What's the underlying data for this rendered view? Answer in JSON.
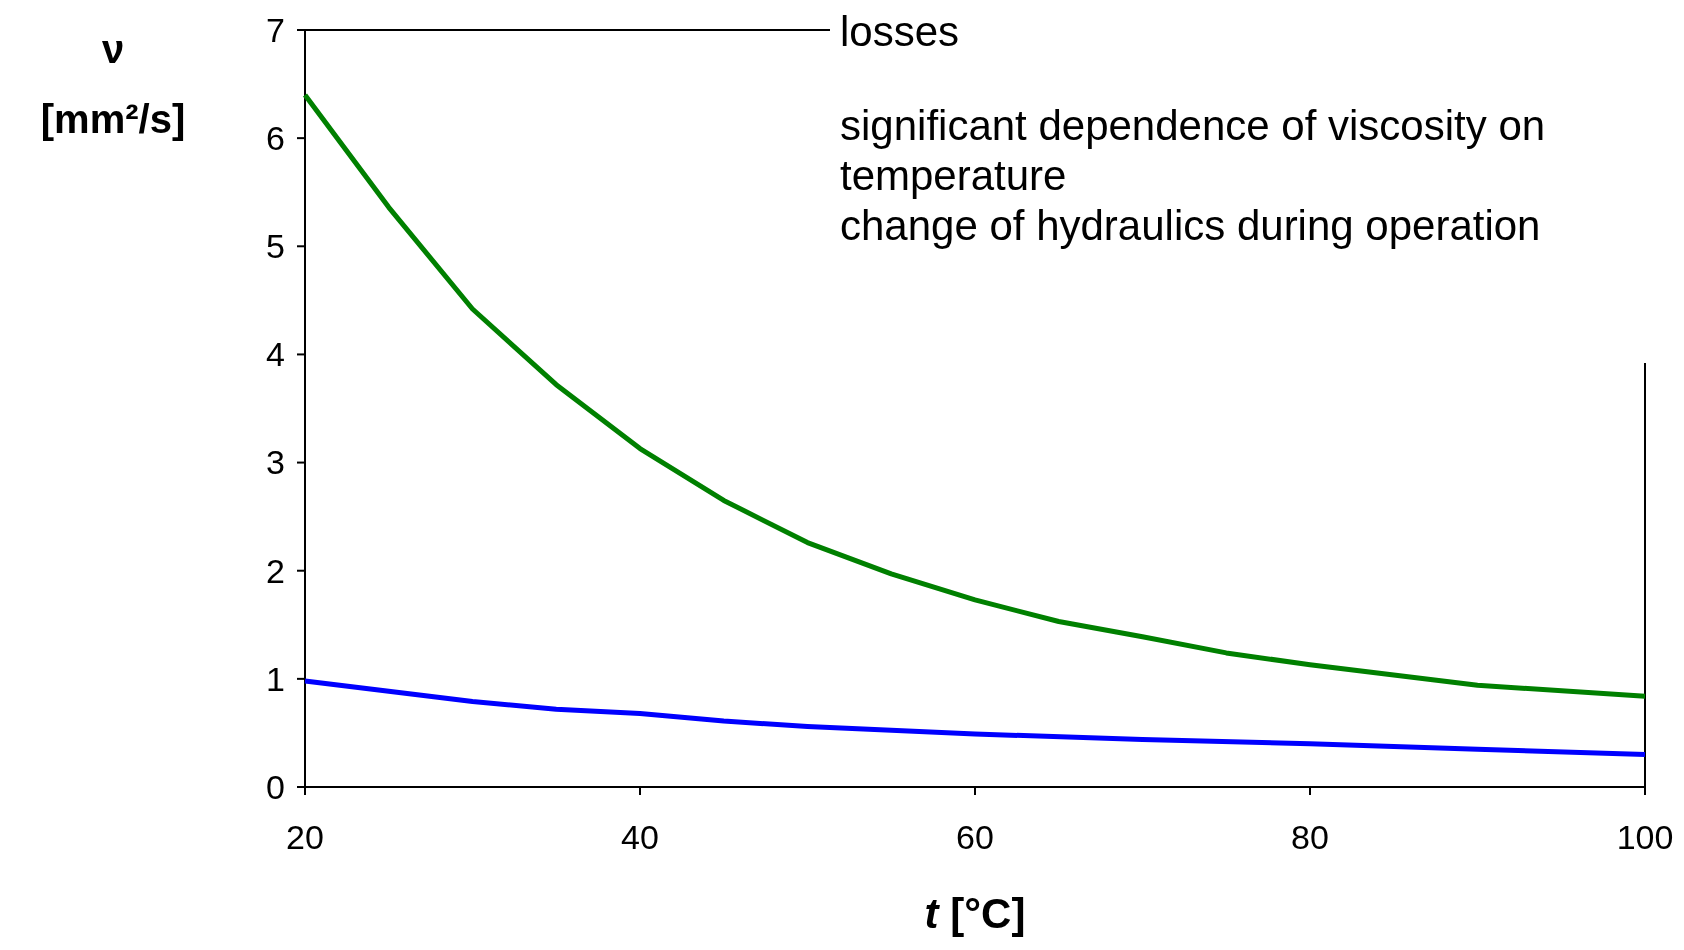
{
  "chart_data": {
    "type": "line",
    "xlabel": "t [°C]",
    "ylabel": "ν [mm²/s]",
    "xlim": [
      20,
      100
    ],
    "xticks": [
      20,
      40,
      60,
      80,
      100
    ],
    "ylim": [
      0,
      7
    ],
    "yticks": [
      0,
      1,
      2,
      3,
      4,
      5,
      6,
      7
    ],
    "grid": false,
    "marker": "none",
    "line_style": "solid",
    "annotations": [
      "losses",
      "significant dependence of viscosity on temperature",
      "change of hydraulics during operation"
    ],
    "series": [
      {
        "color": "#008000",
        "x": [
          20,
          25,
          30,
          35,
          40,
          45,
          50,
          55,
          60,
          65,
          70,
          75,
          80,
          90,
          100
        ],
        "values": [
          6.4,
          5.36,
          4.42,
          3.72,
          3.13,
          2.65,
          2.26,
          1.97,
          1.73,
          1.53,
          1.39,
          1.24,
          1.13,
          0.94,
          0.84
        ]
      },
      {
        "color": "#0000ff",
        "x": [
          20,
          30,
          35,
          40,
          45,
          50,
          60,
          70,
          80,
          90,
          100
        ],
        "values": [
          0.98,
          0.79,
          0.72,
          0.68,
          0.61,
          0.56,
          0.49,
          0.44,
          0.4,
          0.35,
          0.3
        ]
      }
    ]
  }
}
